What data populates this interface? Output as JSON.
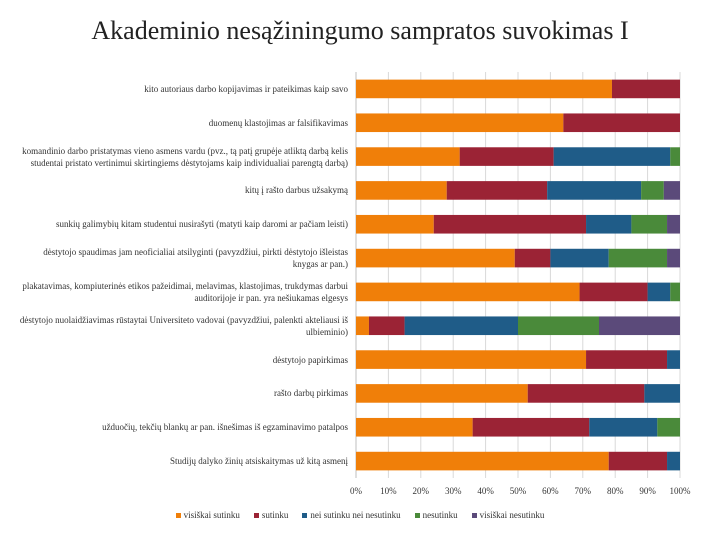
{
  "chart_data": {
    "type": "bar",
    "orientation": "horizontal",
    "stacked": "percent",
    "title": "Akademinio nesąžiningumo sampratos suvokimas I",
    "xlabel": "",
    "ylabel": "",
    "xlim": [
      0,
      100
    ],
    "x_ticks": [
      "0%",
      "10%",
      "20%",
      "30%",
      "40%",
      "50%",
      "60%",
      "70%",
      "80%",
      "90%",
      "100%"
    ],
    "grid": true,
    "legend_position": "bottom",
    "categories": [
      "kito autoriaus darbo kopijavimas ir pateikimas kaip savo",
      "duomenų klastojimas ar falsifikavimas",
      "komandinio darbo pristatymas vieno asmens vardu (pvz., tą patį grupėje atliktą darbą kelis studentai pristato vertinimui skirtingiems dėstytojams kaip individualiai parengtą darbą)",
      "kitų į rašto darbus užsakymą",
      "sunkių galimybių kitam studentui nusirašyti (matyti kaip daromi ar pačiam leisti)",
      "dėstytojo spaudimas jam neoficialiai atsilyginti (pavyzdžiui, pirkti dėstytojo išleistas knygas ar pan.)",
      "plakatavimas, kompiuterinės etikos pažeidimai, melavimas, klastojimas, trukdymas darbui auditorijoje ir pan. yra nešiukamas elgesys",
      "dėstytojo nuolaidžiavimas rūstaytai Universiteto vadovai (pavyzdžiui, palenkti akteliausi iš ulbieminio)",
      "dėstytojo papirkimas",
      "rašto darbų pirkimas",
      "užduočių, tekčių blankų ar pan. išnešimas iš egzaminavimo patalpos",
      "Studijų dalyko žinių atsiskaitymas už kitą asmenį"
    ],
    "series": [
      {
        "name": "visiškai sutinku",
        "color": "#f07f09",
        "values": [
          79,
          64,
          32,
          28,
          24,
          49,
          69,
          4,
          71,
          53,
          36,
          78
        ]
      },
      {
        "name": "sutinku",
        "color": "#9b2335",
        "values": [
          21,
          36,
          29,
          31,
          47,
          11,
          21,
          11,
          25,
          36,
          36,
          18
        ]
      },
      {
        "name": "nei sutinku nei nesutinku",
        "color": "#1f5c88",
        "values": [
          0,
          0,
          36,
          29,
          14,
          18,
          7,
          35,
          4,
          11,
          21,
          4
        ]
      },
      {
        "name": "nesutinku",
        "color": "#4a8a3a",
        "values": [
          0,
          0,
          3,
          7,
          11,
          18,
          3,
          25,
          0,
          0,
          7,
          0
        ]
      },
      {
        "name": "visiškai nesutinku",
        "color": "#5b4a7a",
        "values": [
          0,
          0,
          0,
          5,
          4,
          4,
          0,
          25,
          0,
          0,
          0,
          0
        ]
      }
    ]
  }
}
